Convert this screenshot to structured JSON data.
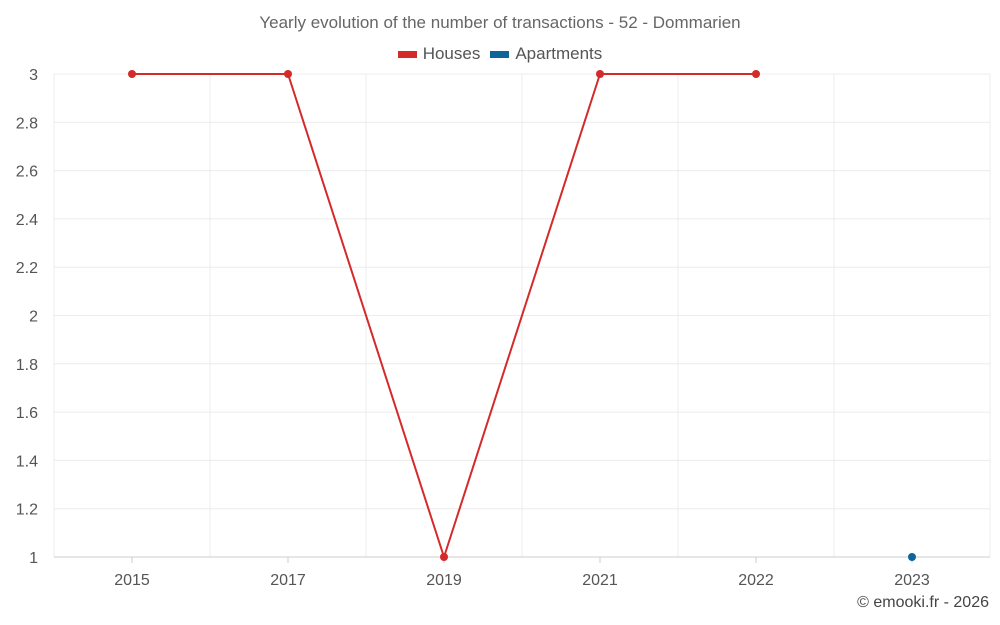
{
  "chart_data": {
    "type": "line",
    "title": "Yearly evolution of the number of transactions - 52 - Dommarien",
    "categories": [
      "2015",
      "2017",
      "2019",
      "2021",
      "2022",
      "2023"
    ],
    "series": [
      {
        "name": "Houses",
        "color": "#d42a2a",
        "values": [
          3,
          3,
          1,
          3,
          3,
          null
        ]
      },
      {
        "name": "Apartments",
        "color": "#0d6699",
        "values": [
          null,
          null,
          null,
          null,
          null,
          1
        ]
      }
    ],
    "ylim": [
      1,
      3
    ],
    "yticks": [
      "1",
      "1.2",
      "1.4",
      "1.6",
      "1.8",
      "2",
      "2.2",
      "2.4",
      "2.6",
      "2.8",
      "3"
    ],
    "grid": true,
    "legend_position": "top-center"
  },
  "credit": "© emooki.fr - 2026"
}
